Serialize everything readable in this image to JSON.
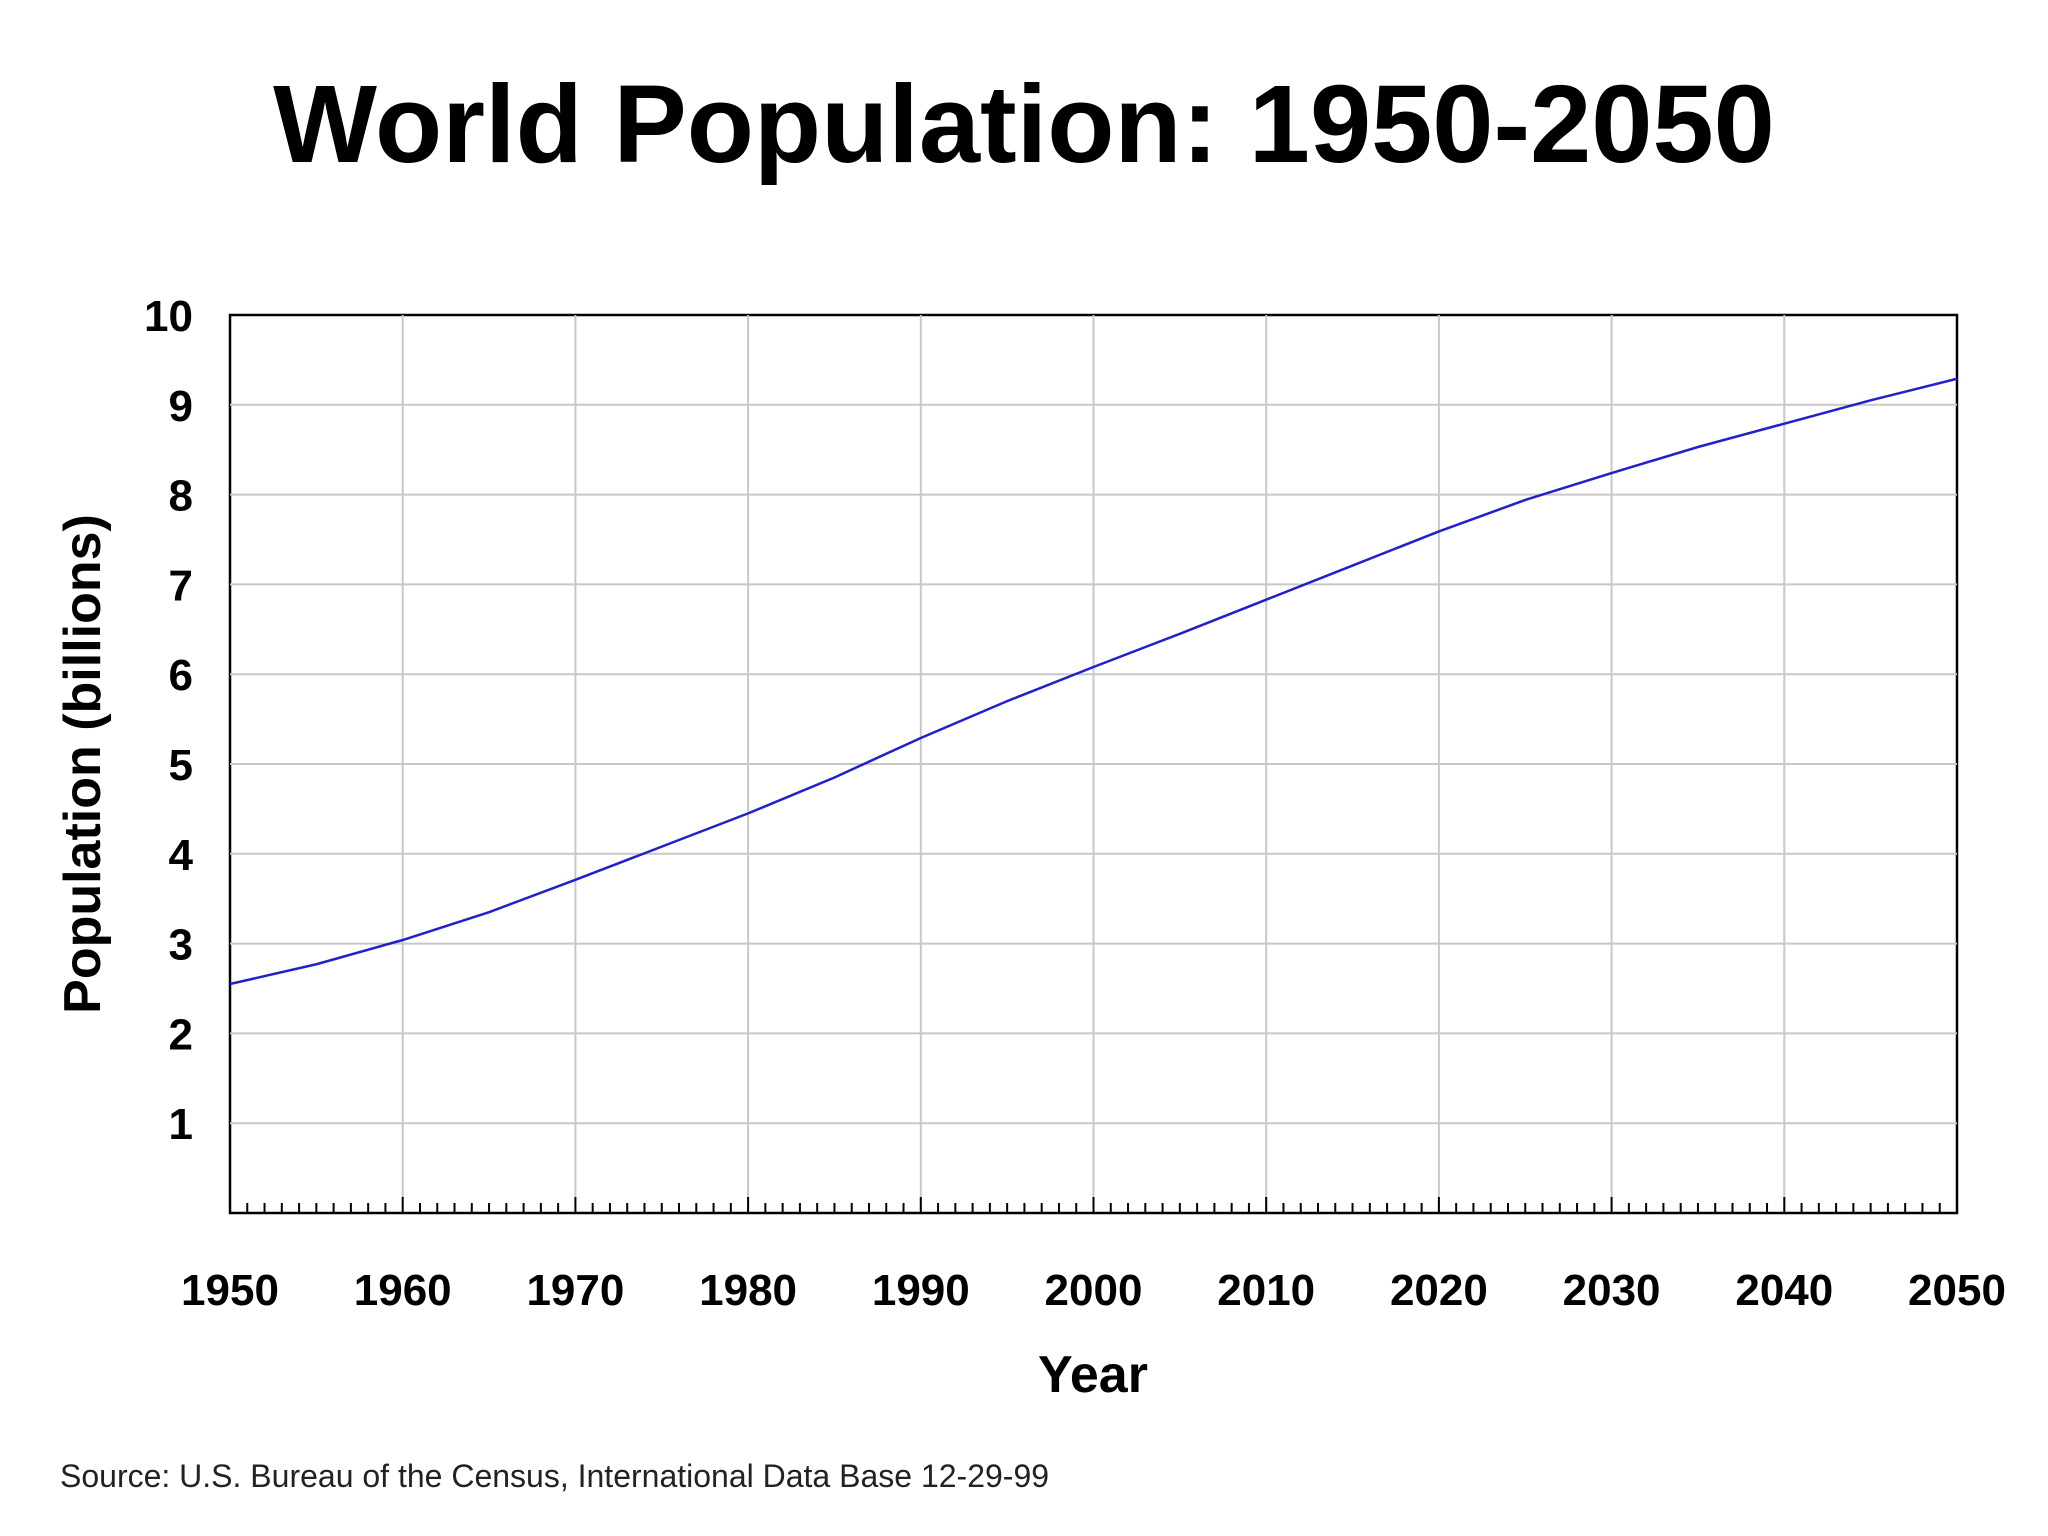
{
  "chart_data": {
    "type": "line",
    "title": "World Population: 1950-2050",
    "xlabel": "Year",
    "ylabel": "Population (billions)",
    "source": "Source: U.S. Bureau of the Census, International Data Base 12-29-99",
    "xlim": [
      1950,
      2050
    ],
    "ylim": [
      0,
      10
    ],
    "x_ticks": [
      1950,
      1960,
      1970,
      1980,
      1990,
      2000,
      2010,
      2020,
      2030,
      2040,
      2050
    ],
    "x_tick_labels": [
      "1950",
      "1960",
      "1970",
      "1980",
      "1990",
      "2000",
      "2010",
      "2020",
      "2030",
      "2040",
      "2050"
    ],
    "y_ticks": [
      1,
      2,
      3,
      4,
      5,
      6,
      7,
      8,
      9,
      10
    ],
    "y_tick_labels": [
      "1",
      "2",
      "3",
      "4",
      "5",
      "6",
      "7",
      "8",
      "9",
      "10"
    ],
    "x_minor_step": 1,
    "grid": true,
    "legend": "none",
    "series": [
      {
        "name": "World population",
        "color": "#2020cc",
        "x": [
          1950,
          1955,
          1960,
          1965,
          1970,
          1975,
          1980,
          1985,
          1990,
          1995,
          2000,
          2005,
          2010,
          2015,
          2020,
          2025,
          2030,
          2035,
          2040,
          2045,
          2050
        ],
        "values": [
          2.55,
          2.77,
          3.04,
          3.35,
          3.71,
          4.08,
          4.45,
          4.85,
          5.29,
          5.7,
          6.08,
          6.45,
          6.83,
          7.21,
          7.59,
          7.94,
          8.24,
          8.53,
          8.79,
          9.05,
          9.29
        ]
      }
    ]
  }
}
